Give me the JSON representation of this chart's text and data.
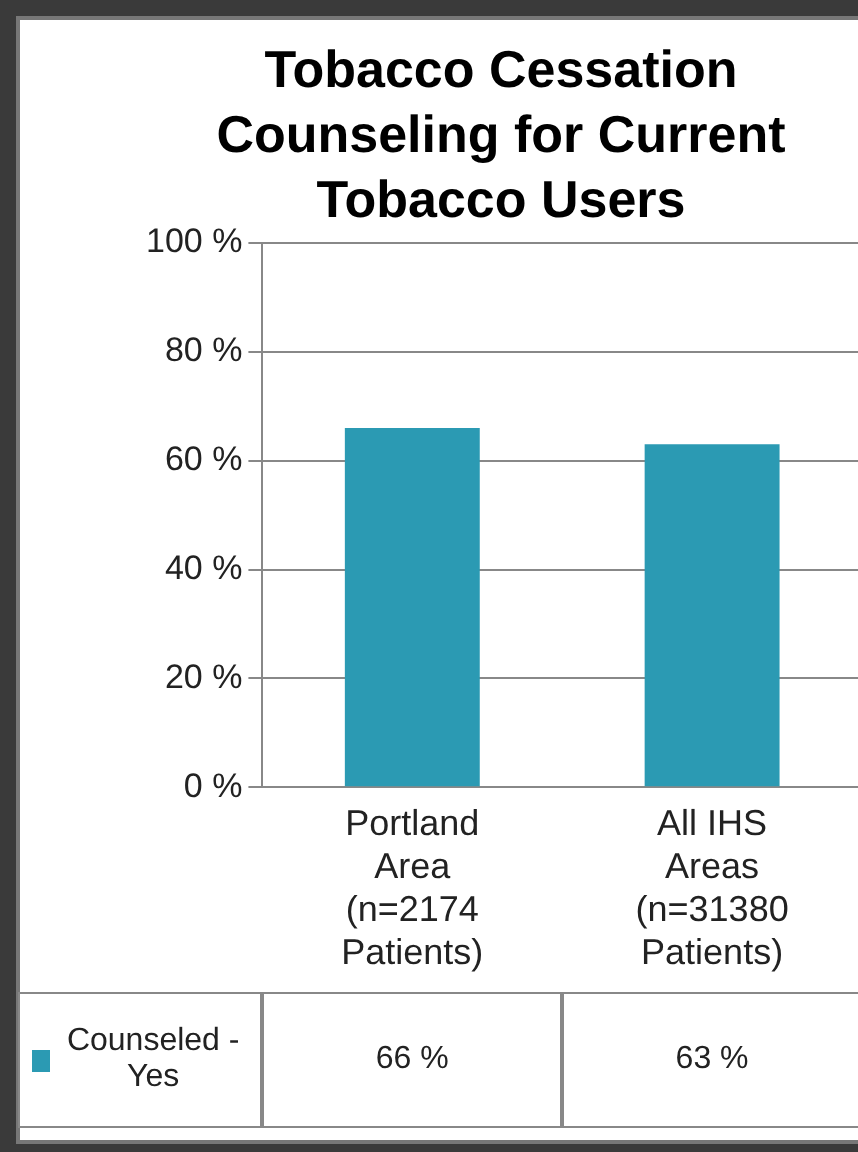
{
  "chart_data": {
    "type": "bar",
    "title": "Tobacco Cessation Counseling for Current Tobacco Users",
    "categories": [
      "Portland Area (n=2174 Patients)",
      "All IHS Areas (n=31380 Patients)"
    ],
    "series": [
      {
        "name": "Counseled - Yes",
        "color": "#2b9ab3",
        "values": [
          66,
          63
        ],
        "value_labels": [
          "66 %",
          "63 %"
        ]
      }
    ],
    "ylim": [
      0,
      100
    ],
    "yticks": [
      {
        "value": 0,
        "label": "0 %"
      },
      {
        "value": 20,
        "label": "20 %"
      },
      {
        "value": 40,
        "label": "40 %"
      },
      {
        "value": 60,
        "label": "60 %"
      },
      {
        "value": 80,
        "label": "80 %"
      },
      {
        "value": 100,
        "label": "100 %"
      }
    ],
    "grid": "y",
    "legend": "bottom"
  }
}
